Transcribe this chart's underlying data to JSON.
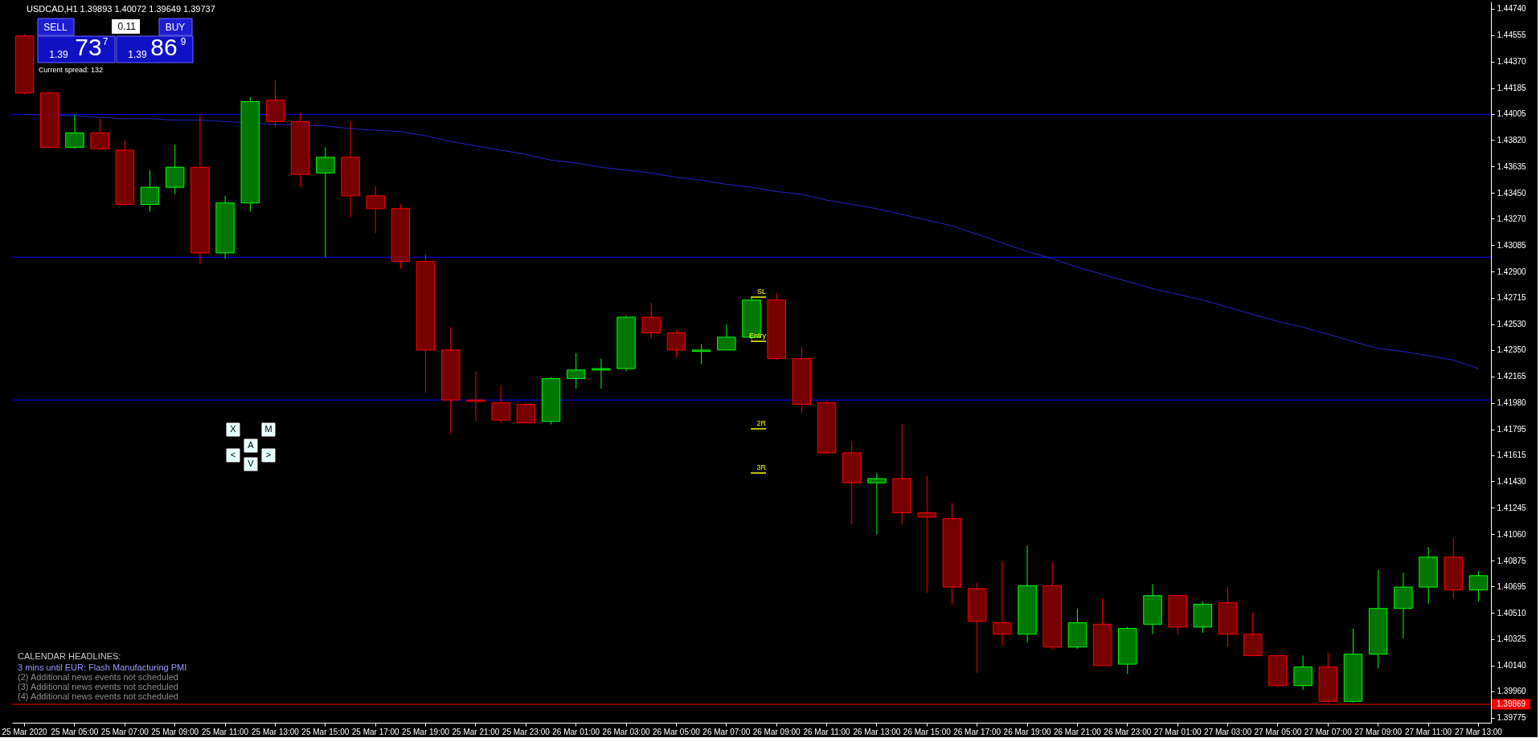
{
  "chart_data": {
    "type": "candlestick",
    "title": "USDCAD,H1 1.39893 1.40072 1.39649 1.39737",
    "categories": [
      "25 Mar 2020",
      null,
      "25 Mar 05:00",
      null,
      "25 Mar 07:00",
      null,
      "25 Mar 09:00",
      null,
      "25 Mar 11:00",
      null,
      "25 Mar 13:00",
      null,
      "25 Mar 15:00",
      null,
      "25 Mar 17:00",
      null,
      "25 Mar 19:00",
      null,
      "25 Mar 21:00",
      null,
      "25 Mar 23:00",
      null,
      "26 Mar 01:00",
      null,
      "26 Mar 03:00",
      null,
      "26 Mar 05:00",
      null,
      "26 Mar 07:00",
      null,
      "26 Mar 09:00",
      null,
      "26 Mar 11:00",
      null,
      "26 Mar 13:00",
      null,
      "26 Mar 15:00",
      null,
      "26 Mar 17:00",
      null,
      "26 Mar 19:00",
      null,
      "26 Mar 21:00",
      null,
      "26 Mar 23:00",
      null,
      "27 Mar 01:00",
      null,
      "27 Mar 03:00",
      null,
      "27 Mar 05:00",
      null,
      "27 Mar 07:00",
      null,
      "27 Mar 09:00",
      null,
      "27 Mar 11:00",
      null,
      "27 Mar 13:00"
    ],
    "ohlc": [
      [
        1.4455,
        1.4456,
        1.4414,
        1.4415
      ],
      [
        1.4415,
        1.4416,
        1.4376,
        1.4377
      ],
      [
        1.4377,
        1.44,
        1.4376,
        1.4387
      ],
      [
        1.4387,
        1.4397,
        1.4375,
        1.4376
      ],
      [
        1.4375,
        1.4382,
        1.4336,
        1.4337
      ],
      [
        1.4337,
        1.4361,
        1.4332,
        1.4349
      ],
      [
        1.4349,
        1.4379,
        1.4344,
        1.4363
      ],
      [
        1.4363,
        1.44,
        1.4295,
        1.4303
      ],
      [
        1.4303,
        1.4343,
        1.4299,
        1.4338
      ],
      [
        1.4338,
        1.4412,
        1.4332,
        1.4409
      ],
      [
        1.441,
        1.4424,
        1.4391,
        1.4395
      ],
      [
        1.4395,
        1.4401,
        1.4349,
        1.4358
      ],
      [
        1.4359,
        1.4377,
        1.43,
        1.437
      ],
      [
        1.437,
        1.4395,
        1.4328,
        1.4343
      ],
      [
        1.4343,
        1.435,
        1.4317,
        1.4334
      ],
      [
        1.4334,
        1.4337,
        1.4292,
        1.4297
      ],
      [
        1.4297,
        1.4302,
        1.4205,
        1.4235
      ],
      [
        1.4235,
        1.4251,
        1.4176,
        1.42
      ],
      [
        1.42,
        1.422,
        1.4185,
        1.4199
      ],
      [
        1.4198,
        1.421,
        1.4184,
        1.4186
      ],
      [
        1.4197,
        1.4198,
        1.4184,
        1.4184
      ],
      [
        1.4185,
        1.4216,
        1.4183,
        1.4215
      ],
      [
        1.4215,
        1.4233,
        1.4208,
        1.4221
      ],
      [
        1.4221,
        1.4229,
        1.4208,
        1.4222
      ],
      [
        1.4222,
        1.4259,
        1.422,
        1.4258
      ],
      [
        1.4258,
        1.4268,
        1.4243,
        1.4247
      ],
      [
        1.4247,
        1.4249,
        1.423,
        1.4235
      ],
      [
        1.4234,
        1.4239,
        1.4225,
        1.4235
      ],
      [
        1.4235,
        1.4253,
        1.4235,
        1.4244
      ],
      [
        1.4244,
        1.4272,
        1.4242,
        1.427
      ],
      [
        1.427,
        1.4275,
        1.4228,
        1.4229
      ],
      [
        1.4229,
        1.4237,
        1.4191,
        1.4197
      ],
      [
        1.4198,
        1.4199,
        1.4163,
        1.4163
      ],
      [
        1.4163,
        1.4171,
        1.4113,
        1.4142
      ],
      [
        1.4142,
        1.4149,
        1.4106,
        1.4145
      ],
      [
        1.4145,
        1.4183,
        1.4113,
        1.4121
      ],
      [
        1.4121,
        1.4147,
        1.4065,
        1.4118
      ],
      [
        1.4117,
        1.4128,
        1.4057,
        1.4069
      ],
      [
        1.4068,
        1.4072,
        1.4009,
        1.4045
      ],
      [
        1.4044,
        1.4087,
        1.4028,
        1.4036
      ],
      [
        1.4036,
        1.4098,
        1.403,
        1.407
      ],
      [
        1.407,
        1.4086,
        1.4025,
        1.4027
      ],
      [
        1.4027,
        1.4054,
        1.4026,
        1.4044
      ],
      [
        1.4043,
        1.4061,
        1.4014,
        1.4014
      ],
      [
        1.4015,
        1.4041,
        1.4008,
        1.404
      ],
      [
        1.4043,
        1.4071,
        1.4036,
        1.4063
      ],
      [
        1.4063,
        1.4063,
        1.4036,
        1.4041
      ],
      [
        1.4041,
        1.4059,
        1.4037,
        1.4057
      ],
      [
        1.4058,
        1.4069,
        1.4027,
        1.4036
      ],
      [
        1.4036,
        1.4051,
        1.4021,
        1.4021
      ],
      [
        1.4021,
        1.4021,
        1.3999,
        1.4
      ],
      [
        1.4,
        1.4021,
        1.3997,
        1.4013
      ],
      [
        1.4013,
        1.4023,
        1.3988,
        1.3989
      ],
      [
        1.3989,
        1.404,
        1.3988,
        1.4022
      ],
      [
        1.4022,
        1.4081,
        1.4012,
        1.4054
      ],
      [
        1.4054,
        1.4079,
        1.4033,
        1.4069
      ],
      [
        1.4069,
        1.4097,
        1.4057,
        1.409
      ],
      [
        1.409,
        1.4103,
        1.4061,
        1.4067
      ],
      [
        1.4067,
        1.408,
        1.4059,
        1.4077
      ]
    ],
    "colors": [
      "#ff0000",
      "#ff0000",
      "#00ff00",
      "#ff0000",
      "#ff0000",
      "#00ff00",
      "#00ff00",
      "#ff0000",
      "#00ff00",
      "#00ff00",
      "#ff0000",
      "#ff0000",
      "#00ff00",
      "#ff0000",
      "#ff0000",
      "#ff0000",
      "#ff0000",
      "#ff0000",
      "#ff0000",
      "#ff0000",
      "#ff0000",
      "#00ff00",
      "#00ff00",
      "#00ff00",
      "#00ff00",
      "#ff0000",
      "#ff0000",
      "#00ff00",
      "#00ff00",
      "#00ff00",
      "#ff0000",
      "#ff0000",
      "#ff0000",
      "#ff0000",
      "#00ff00",
      "#ff0000",
      "#ff0000",
      "#ff0000",
      "#ff0000",
      "#ff0000",
      "#00ff00",
      "#ff0000",
      "#00ff00",
      "#ff0000",
      "#00ff00",
      "#00ff00",
      "#ff0000",
      "#00ff00",
      "#ff0000",
      "#ff0000",
      "#ff0000",
      "#00ff00",
      "#ff0000",
      "#00ff00",
      "#00ff00",
      "#00ff00",
      "#00ff00",
      "#ff0000",
      "#00ff00"
    ],
    "series": [
      {
        "type": "line",
        "color": "#2424c8",
        "values": [
          1.44,
          null,
          1.4399,
          1.4398,
          1.4397,
          1.4397,
          1.4396,
          1.4396,
          1.4395,
          null,
          1.4393,
          null,
          1.4392,
          1.439,
          1.4389,
          1.4388,
          1.4385,
          1.4381,
          1.4378,
          1.4375,
          1.4372,
          1.4368,
          1.4366,
          1.4363,
          1.4361,
          1.4359,
          1.4356,
          1.4354,
          1.4351,
          1.4349,
          1.4346,
          1.4344,
          1.434,
          1.4337,
          1.4334,
          1.433,
          1.4326,
          1.4322,
          1.4316,
          1.431,
          1.4304,
          1.4299,
          1.4293,
          1.4288,
          1.4283,
          1.4278,
          1.4274,
          1.427,
          1.4265,
          1.426,
          1.4255,
          1.4251,
          1.4246,
          1.4241,
          1.4236,
          1.4234,
          1.4231,
          1.4228,
          1.4222
        ]
      }
    ],
    "ylim": [
      1.3974,
      1.4479
    ],
    "yticks": [
      {
        "value": 1.4474,
        "label": "1.44740"
      },
      1.44555,
      {
        "value": 1.4437,
        "label": "1.44370"
      },
      1.44185,
      1.44005,
      {
        "value": 1.4382,
        "label": "1.43820"
      },
      1.43635,
      {
        "value": 1.4345,
        "label": "1.43450"
      },
      {
        "value": 1.4327,
        "label": "1.43270"
      },
      1.43085,
      {
        "value": 1.429,
        "label": "1.42900"
      },
      1.42715,
      {
        "value": 1.4253,
        "label": "1.42530"
      },
      {
        "value": 1.4235,
        "label": "1.42350"
      },
      1.42165,
      {
        "value": 1.4198,
        "label": "1.41980"
      },
      1.41795,
      1.41615,
      {
        "value": 1.4143,
        "label": "1.41430"
      },
      1.41245,
      {
        "value": 1.4106,
        "label": "1.41060"
      },
      1.40875,
      1.40695,
      {
        "value": 1.4051,
        "label": "1.40510"
      },
      1.40325,
      {
        "value": 1.4014,
        "label": "1.40140"
      },
      {
        "value": 1.3996,
        "label": "1.39960"
      },
      1.39775
    ],
    "ref_lines": [
      {
        "axis": "y",
        "value": 1.44,
        "color": "#0000ff"
      },
      {
        "axis": "y",
        "value": 1.43,
        "color": "#0000ff"
      },
      {
        "axis": "y",
        "value": 1.42,
        "color": "#0000ff"
      },
      {
        "axis": "y",
        "value": 1.39869,
        "label": "1.39869",
        "color": "#ff0000"
      }
    ],
    "annotations": [
      "SELL",
      "0.11",
      "BUY",
      "1.39",
      "73",
      "7",
      "1.39",
      "86",
      "9",
      "Current spread: 132",
      "X",
      "M",
      "<",
      "A",
      ">",
      "V",
      "CALENDAR HEADLINES:",
      "3 mins until EUR: Flash Manufacturing PMI",
      "(2) Additional news events not scheduled",
      "(3) Additional news events not scheduled",
      "(4) Additional news events not scheduled",
      "SL",
      "Entry",
      "2R",
      "3R"
    ]
  }
}
